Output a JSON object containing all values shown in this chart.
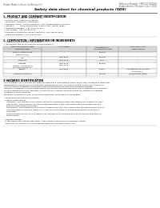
{
  "header_left": "Product Name: Lithium Ion Battery Cell",
  "header_right": "Reference Number: 1990-001-000010\nEstablishment / Revision: Dec.7.2010",
  "title": "Safety data sheet for chemical products (SDS)",
  "section1_header": "1. PRODUCT AND COMPANY IDENTIFICATION",
  "section1_lines": [
    "• Product name: Lithium Ion Battery Cell",
    "• Product code: Cylindrical-type cell",
    "  SW18650U, SW18650L, SW18650A",
    "• Company name:   Sanyo Electric Co., Ltd., Mobile Energy Company",
    "• Address:          2001, Kamiyashiro, Sumoto-City, Hyogo, Japan",
    "• Telephone number:   +81-798-20-4111",
    "• Fax number:  +81-798-20-4121",
    "• Emergency telephone number (daytime): +81-798-20-3862",
    "  (Night and holiday): +81-798-20-4101"
  ],
  "section2_header": "2. COMPOSITION / INFORMATION ON INGREDIENTS",
  "section2_intro": "• Substance or preparation: Preparation",
  "section2_sub": "• Information about the chemical nature of product:",
  "table_col_headers": [
    "Chemical chemical name",
    "CAS number",
    "Concentration /\nConcentration range",
    "Classification and\nhazard labeling"
  ],
  "table_col_header2": "Chemical name",
  "table_rows": [
    [
      "Lithium cobalt oxide\n(LiMnCoO₂(O))",
      "-",
      "30-60%",
      "-"
    ],
    [
      "Iron",
      "7439-89-6",
      "10-20%",
      "-"
    ],
    [
      "Aluminum",
      "7429-90-5",
      "2-5%",
      "-"
    ],
    [
      "Graphite\n(Mixed in graphite-1)\n(All thin graphite-1)",
      "7782-42-5\n7782-44-0",
      "10-20%",
      "-"
    ],
    [
      "Copper",
      "7440-50-8",
      "5-15%",
      "Sensitization of the skin\ngroup No.2"
    ],
    [
      "Organic electrolyte",
      "-",
      "10-20%",
      "Inflammable liquid"
    ]
  ],
  "section3_header": "3 HAZARDS IDENTIFICATION",
  "section3_body": [
    "For the battery cell, chemical materials are stored in a hermetically-sealed metal case, designed to withstand",
    "temperatures and pressure-concentration during normal use. As a result, during normal use, there is no",
    "physical danger of ignition or explosion and thermal danger of hazardous materials leakage.",
    "However, if exposed to a fire, added mechanical shocks, decomposed, when electro without any measures,",
    "the gas release cannot be operated. The battery cell case will be breached at fire-extreme, hazardous",
    "materials may be released.",
    "Moreover, if heated strongly by the surrounding fire, some gas may be emitted.",
    "",
    "• Most important hazard and effects:",
    "  Human health effects:",
    "    Inhalation: The release of the electrolyte has an anesthesia action and stimulates a respiratory tract.",
    "    Skin contact: The release of the electrolyte stimulates a skin. The electrolyte skin contact causes a",
    "    sore and stimulation on the skin.",
    "    Eye contact: The release of the electrolyte stimulates eyes. The electrolyte eye contact causes a sore",
    "    and stimulation on the eye. Especially, substance that causes a strong inflammation of the eye is",
    "    contained.",
    "    Environmental effects: Since a battery cell remains in the environment, do not throw out it into the",
    "    environment.",
    "",
    "• Specific hazards:",
    "  If the electrolyte contacts with water, it will generate detrimental hydrogen fluoride.",
    "  Since the seal electrolyte is inflammable liquid, do not bring close to fire."
  ],
  "bg_color": "#ffffff",
  "text_color": "#000000",
  "gray_text": "#555555",
  "table_header_bg": "#d8d8d8",
  "table_border_color": "#999999",
  "section_line_color": "#bbbbbb",
  "title_line_color": "#333333"
}
